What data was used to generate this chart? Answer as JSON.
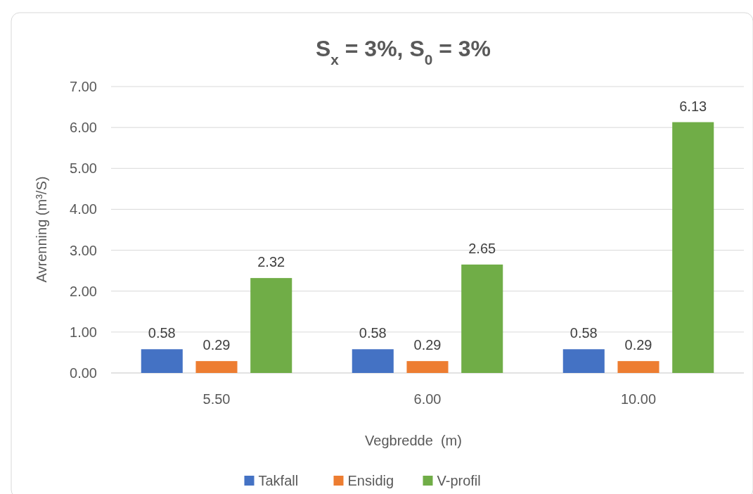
{
  "chart_data": {
    "type": "bar",
    "title": "S$_{x}$ = 3%, S$_{0}$ = 3%",
    "xlabel": "Vegbredde  (m)",
    "ylabel": "Avrenning (m³/S)",
    "categories": [
      "5.50",
      "6.00",
      "10.00"
    ],
    "series": [
      {
        "name": "Takfall",
        "color": "#4472c4",
        "values": [
          0.58,
          0.58,
          0.58
        ]
      },
      {
        "name": "Ensidig",
        "color": "#ed7d31",
        "values": [
          0.29,
          0.29,
          0.29
        ]
      },
      {
        "name": "V-profil",
        "color": "#70ad47",
        "values": [
          2.32,
          2.65,
          6.13
        ]
      }
    ],
    "ylim": [
      0,
      7
    ],
    "yticks": [
      {
        "value": 0,
        "label": "0.00"
      },
      {
        "value": 1,
        "label": "1.00"
      },
      {
        "value": 2,
        "label": "2.00"
      },
      {
        "value": 3,
        "label": "3.00"
      },
      {
        "value": 4,
        "label": "4.00"
      },
      {
        "value": 5,
        "label": "5.00"
      },
      {
        "value": 6,
        "label": "6.00"
      },
      {
        "value": 7,
        "label": "7.00"
      }
    ],
    "grid": "y",
    "legend": "bottom",
    "data_labels": true
  }
}
